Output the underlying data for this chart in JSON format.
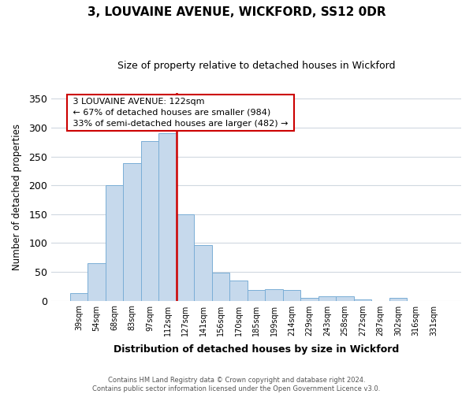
{
  "title": "3, LOUVAINE AVENUE, WICKFORD, SS12 0DR",
  "subtitle": "Size of property relative to detached houses in Wickford",
  "xlabel": "Distribution of detached houses by size in Wickford",
  "ylabel": "Number of detached properties",
  "bar_labels": [
    "39sqm",
    "54sqm",
    "68sqm",
    "83sqm",
    "97sqm",
    "112sqm",
    "127sqm",
    "141sqm",
    "156sqm",
    "170sqm",
    "185sqm",
    "199sqm",
    "214sqm",
    "229sqm",
    "243sqm",
    "258sqm",
    "272sqm",
    "287sqm",
    "302sqm",
    "316sqm",
    "331sqm"
  ],
  "bar_heights": [
    13,
    65,
    200,
    238,
    277,
    290,
    150,
    97,
    48,
    35,
    19,
    20,
    19,
    5,
    8,
    8,
    2,
    0,
    5,
    0,
    0
  ],
  "bar_color": "#c6d9ec",
  "bar_edge_color": "#7aaed6",
  "vline_color": "#cc0000",
  "vline_x_idx": 5.5,
  "ylim": [
    0,
    360
  ],
  "yticks": [
    0,
    50,
    100,
    150,
    200,
    250,
    300,
    350
  ],
  "annotation_title": "3 LOUVAINE AVENUE: 122sqm",
  "annotation_line1": "← 67% of detached houses are smaller (984)",
  "annotation_line2": "33% of semi-detached houses are larger (482) →",
  "annotation_box_color": "#ffffff",
  "annotation_box_edge": "#cc0000",
  "footer_line1": "Contains HM Land Registry data © Crown copyright and database right 2024.",
  "footer_line2": "Contains public sector information licensed under the Open Government Licence v3.0.",
  "background_color": "#ffffff",
  "grid_color": "#d0d8e0"
}
